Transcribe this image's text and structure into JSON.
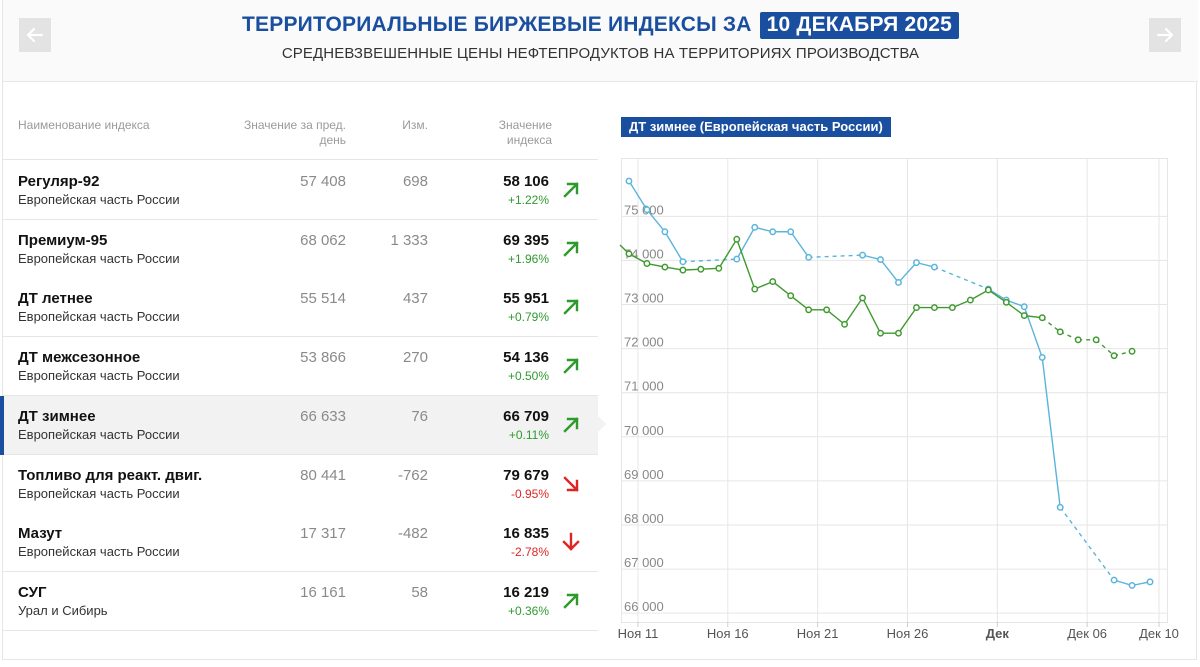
{
  "header": {
    "title": "ТЕРРИТОРИАЛЬНЫЕ БИРЖЕВЫЕ ИНДЕКСЫ ЗА",
    "date": "10 ДЕКАБРЯ 2025",
    "subtitle": "СРЕДНЕВЗВЕШЕННЫЕ ЦЕНЫ НЕФТЕПРОДУКТОВ НА ТЕРРИТОРИЯХ ПРОИЗВОДСТВА",
    "prev_icon": "arrow-left-icon",
    "next_icon": "arrow-right-icon"
  },
  "table": {
    "headers": {
      "name": "Наименование индекса",
      "prev": "Значение за пред. день",
      "change": "Изм.",
      "value": "Значение индекса"
    },
    "rows": [
      {
        "name": "Регуляр-92",
        "region": "Европейская часть России",
        "prev": "57 408",
        "change": "698",
        "value": "58 106",
        "pct": "+1.22%",
        "trend": "up"
      },
      {
        "name": "Премиум-95",
        "region": "Европейская часть России",
        "prev": "68 062",
        "change": "1 333",
        "value": "69 395",
        "pct": "+1.96%",
        "trend": "up"
      },
      {
        "name": "ДТ летнее",
        "region": "Европейская часть России",
        "prev": "55 514",
        "change": "437",
        "value": "55 951",
        "pct": "+0.79%",
        "trend": "up"
      },
      {
        "name": "ДТ межсезонное",
        "region": "Европейская часть России",
        "prev": "53 866",
        "change": "270",
        "value": "54 136",
        "pct": "+0.50%",
        "trend": "up"
      },
      {
        "name": "ДТ зимнее",
        "region": "Европейская часть России",
        "prev": "66 633",
        "change": "76",
        "value": "66 709",
        "pct": "+0.11%",
        "trend": "up",
        "active": true
      },
      {
        "name": "Топливо для реакт. двиг.",
        "region": "Европейская часть России",
        "prev": "80 441",
        "change": "-762",
        "value": "79 679",
        "pct": "-0.95%",
        "trend": "down-right"
      },
      {
        "name": "Мазут",
        "region": "Европейская часть России",
        "prev": "17 317",
        "change": "-482",
        "value": "16 835",
        "pct": "-2.78%",
        "trend": "down"
      },
      {
        "name": "СУГ",
        "region": "Урал и Сибирь",
        "prev": "16 161",
        "change": "58",
        "value": "16 219",
        "pct": "+0.36%",
        "trend": "up"
      }
    ]
  },
  "chart_label": "ДТ зимнее (Европейская часть России)",
  "chart_data": {
    "type": "line",
    "title": "ДТ зимнее (Европейская часть России)",
    "xlim": [
      -0.5,
      30
    ],
    "ylim": [
      65800,
      76300
    ],
    "y_ticks": [
      66000,
      67000,
      68000,
      69000,
      70000,
      71000,
      72000,
      73000,
      74000,
      75000
    ],
    "y_tick_labels": [
      "66 000",
      "67 000",
      "68 000",
      "69 000",
      "70 000",
      "71 000",
      "72 000",
      "73 000",
      "74 000",
      "75 000"
    ],
    "x_ticks": [
      {
        "pos": 0.5,
        "label": "Ноя 11",
        "bold": false
      },
      {
        "pos": 5.5,
        "label": "Ноя 16",
        "bold": false
      },
      {
        "pos": 10.5,
        "label": "Ноя 21",
        "bold": false
      },
      {
        "pos": 15.5,
        "label": "Ноя 26",
        "bold": false
      },
      {
        "pos": 20.5,
        "label": "Дек",
        "bold": true
      },
      {
        "pos": 25.5,
        "label": "Дек 06",
        "bold": false
      },
      {
        "pos": 29.5,
        "label": "Дек 10",
        "bold": false
      }
    ],
    "grid": true,
    "colors": {
      "series1": "#5ab4dc",
      "series2": "#3e9a2e",
      "grid": "#e6e6e6"
    },
    "series": [
      {
        "key": "blue",
        "points": [
          [
            0,
            75.8
          ],
          [
            1,
            75.15
          ],
          [
            2,
            74.65
          ],
          [
            3,
            73.97
          ],
          [
            6,
            74.03
          ],
          [
            7,
            74.75
          ],
          [
            8,
            74.65
          ],
          [
            9,
            74.65
          ],
          [
            10,
            74.07
          ],
          [
            13,
            74.12
          ],
          [
            14,
            74.02
          ],
          [
            15,
            73.5
          ],
          [
            16,
            73.95
          ],
          [
            17,
            73.85
          ],
          [
            20,
            73.35
          ],
          [
            21,
            73.1
          ],
          [
            22,
            72.95
          ],
          [
            23,
            71.8
          ],
          [
            24,
            68.4
          ],
          [
            27,
            66.75
          ],
          [
            28,
            66.63
          ],
          [
            29,
            66.71
          ]
        ],
        "dashed_gaps": [
          [
            3,
            6
          ],
          [
            10,
            13
          ],
          [
            17,
            20
          ],
          [
            24,
            27
          ]
        ]
      },
      {
        "key": "green",
        "points": [
          [
            -0.5,
            74.35
          ],
          [
            0,
            74.15
          ],
          [
            1,
            73.93
          ],
          [
            2,
            73.85
          ],
          [
            3,
            73.78
          ],
          [
            4,
            73.8
          ],
          [
            5,
            73.82
          ],
          [
            6,
            74.48
          ],
          [
            7,
            73.35
          ],
          [
            8,
            73.52
          ],
          [
            9,
            73.2
          ],
          [
            10,
            72.88
          ],
          [
            11,
            72.88
          ],
          [
            12,
            72.55
          ],
          [
            13,
            73.15
          ],
          [
            14,
            72.35
          ],
          [
            15,
            72.35
          ],
          [
            16,
            72.93
          ],
          [
            17,
            72.93
          ],
          [
            18,
            72.93
          ],
          [
            19,
            73.1
          ],
          [
            20,
            73.33
          ],
          [
            21,
            73.05
          ],
          [
            22,
            72.75
          ],
          [
            23,
            72.7
          ],
          [
            24,
            72.38
          ],
          [
            25,
            72.2
          ],
          [
            26,
            72.2
          ],
          [
            27,
            71.84
          ],
          [
            28,
            71.94
          ]
        ],
        "dashed_from": 23
      }
    ]
  }
}
